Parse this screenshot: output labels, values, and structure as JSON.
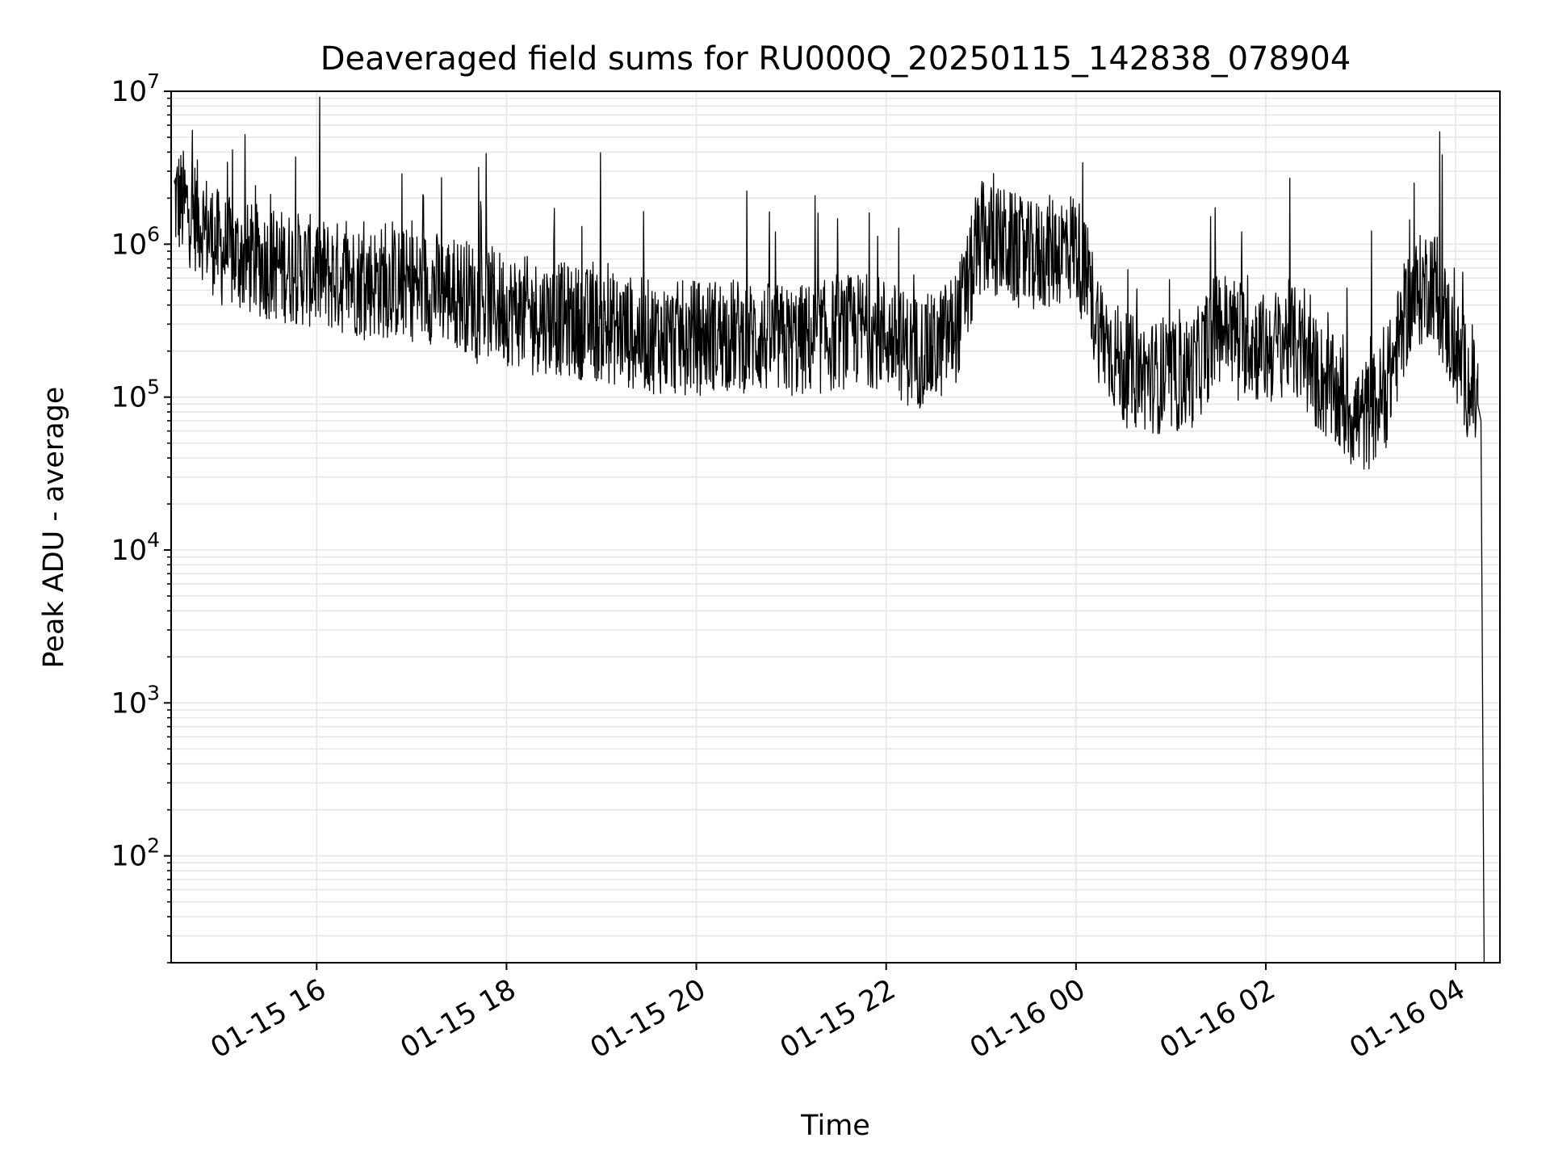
{
  "chart_data": {
    "type": "line",
    "title": "Deaveraged field sums for RU000Q_20250115_142838_078904",
    "xlabel": "Time",
    "ylabel": "Peak ADU - average",
    "x_scale": "time",
    "y_scale": "log",
    "xlim": [
      "2025-01-15 14:28",
      "2025-01-16 04:28"
    ],
    "ylim": [
      20,
      10000000
    ],
    "grid": true,
    "colors": {
      "line": "#000000",
      "grid": "#e6e6e6",
      "axes": "#000000"
    },
    "x_ticks": [
      {
        "label": "01-15 16",
        "value": "2025-01-15 16:00"
      },
      {
        "label": "01-15 18",
        "value": "2025-01-15 18:00"
      },
      {
        "label": "01-15 20",
        "value": "2025-01-15 20:00"
      },
      {
        "label": "01-15 22",
        "value": "2025-01-15 22:00"
      },
      {
        "label": "01-16 00",
        "value": "2025-01-16 00:00"
      },
      {
        "label": "01-16 02",
        "value": "2025-01-16 02:00"
      },
      {
        "label": "01-16 04",
        "value": "2025-01-16 04:00"
      }
    ],
    "y_ticks": [
      {
        "base": "10",
        "exp": "2",
        "value": 100
      },
      {
        "base": "10",
        "exp": "3",
        "value": 1000
      },
      {
        "base": "10",
        "exp": "4",
        "value": 10000
      },
      {
        "base": "10",
        "exp": "5",
        "value": 100000
      },
      {
        "base": "10",
        "exp": "6",
        "value": 1000000
      },
      {
        "base": "10",
        "exp": "7",
        "value": 10000000
      }
    ],
    "series": [
      {
        "x": [
          "2025-01-15 14:30",
          "2025-01-15 14:45",
          "2025-01-15 15:00",
          "2025-01-15 15:15",
          "2025-01-15 15:30",
          "2025-01-15 15:45",
          "2025-01-15 16:00",
          "2025-01-15 16:15",
          "2025-01-15 16:30",
          "2025-01-15 16:45",
          "2025-01-15 17:00",
          "2025-01-15 17:15",
          "2025-01-15 17:30",
          "2025-01-15 17:45",
          "2025-01-15 18:00",
          "2025-01-15 18:15",
          "2025-01-15 18:30",
          "2025-01-15 18:45",
          "2025-01-15 19:00",
          "2025-01-15 19:15",
          "2025-01-15 19:30",
          "2025-01-15 19:45",
          "2025-01-15 20:00",
          "2025-01-15 20:15",
          "2025-01-15 20:30",
          "2025-01-15 20:45",
          "2025-01-15 21:00",
          "2025-01-15 21:15",
          "2025-01-15 21:30",
          "2025-01-15 21:45",
          "2025-01-15 22:00",
          "2025-01-15 22:15",
          "2025-01-15 22:30",
          "2025-01-15 22:45",
          "2025-01-15 23:00",
          "2025-01-15 23:15",
          "2025-01-15 23:30",
          "2025-01-15 23:45",
          "2025-01-16 00:00",
          "2025-01-16 00:15",
          "2025-01-16 00:30",
          "2025-01-16 00:45",
          "2025-01-16 01:00",
          "2025-01-16 01:15",
          "2025-01-16 01:30",
          "2025-01-16 01:45",
          "2025-01-16 02:00",
          "2025-01-16 02:15",
          "2025-01-16 02:30",
          "2025-01-16 02:45",
          "2025-01-16 03:00",
          "2025-01-16 03:15",
          "2025-01-16 03:30",
          "2025-01-16 03:45",
          "2025-01-16 04:00",
          "2025-01-16 04:05",
          "2025-01-16 04:10",
          "2025-01-16 04:14",
          "2025-01-16 04:16",
          "2025-01-16 04:18"
        ],
        "y": [
          2000000,
          1500000,
          900000,
          800000,
          750000,
          700000,
          650000,
          600000,
          580000,
          560000,
          540000,
          520000,
          480000,
          430000,
          380000,
          350000,
          330000,
          310000,
          290000,
          270000,
          250000,
          240000,
          250000,
          260000,
          250000,
          240000,
          230000,
          240000,
          260000,
          280000,
          260000,
          200000,
          200000,
          300000,
          1100000,
          1000000,
          800000,
          900000,
          1000000,
          280000,
          150000,
          140000,
          130000,
          150000,
          300000,
          250000,
          200000,
          250000,
          150000,
          100000,
          70000,
          100000,
          400000,
          600000,
          200000,
          150000,
          110000,
          90000,
          70000,
          20
        ]
      }
    ]
  }
}
